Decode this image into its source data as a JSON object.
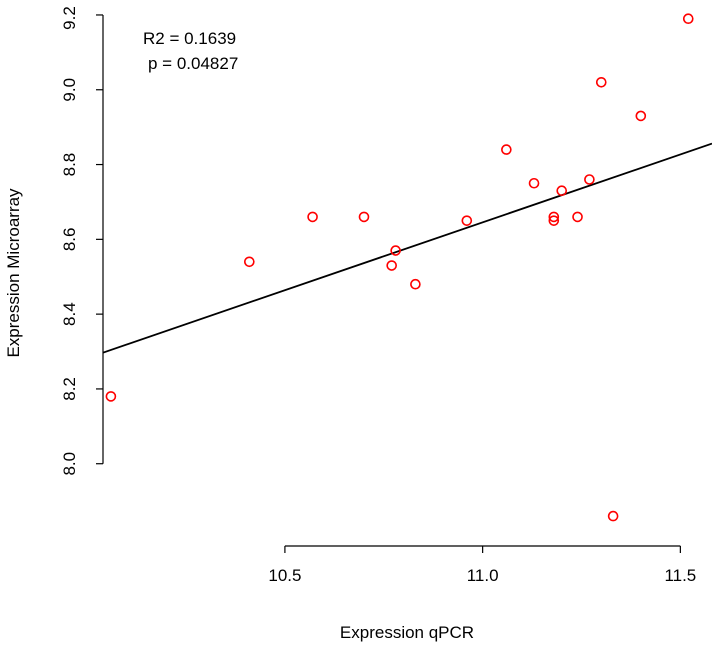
{
  "chart_data": {
    "type": "scatter",
    "xlabel": "Expression qPCR",
    "ylabel": "Expression Microarray",
    "xlim": [
      10.04,
      11.58
    ],
    "ylim": [
      7.78,
      9.24
    ],
    "x_ticks": [
      "10.5",
      "11.0",
      "11.5"
    ],
    "y_ticks": [
      "8.0",
      "8.2",
      "8.4",
      "8.6",
      "8.8",
      "9.0",
      "9.2"
    ],
    "point_color": "#ff0000",
    "annotations": [
      "R2 = 0.1639",
      "p = 0.04827"
    ],
    "points": [
      {
        "x": 10.06,
        "y": 8.18
      },
      {
        "x": 10.41,
        "y": 8.54
      },
      {
        "x": 10.57,
        "y": 8.66
      },
      {
        "x": 10.7,
        "y": 8.66
      },
      {
        "x": 10.77,
        "y": 8.53
      },
      {
        "x": 10.78,
        "y": 8.57
      },
      {
        "x": 10.83,
        "y": 8.48
      },
      {
        "x": 10.96,
        "y": 8.65
      },
      {
        "x": 11.06,
        "y": 8.84
      },
      {
        "x": 11.13,
        "y": 8.75
      },
      {
        "x": 11.18,
        "y": 8.65
      },
      {
        "x": 11.18,
        "y": 8.66
      },
      {
        "x": 11.2,
        "y": 8.73
      },
      {
        "x": 11.24,
        "y": 8.66
      },
      {
        "x": 11.27,
        "y": 8.76
      },
      {
        "x": 11.3,
        "y": 9.02
      },
      {
        "x": 11.33,
        "y": 7.86
      },
      {
        "x": 11.4,
        "y": 8.93
      },
      {
        "x": 11.52,
        "y": 9.19
      }
    ],
    "fit_line": {
      "x": [
        10.04,
        11.58
      ],
      "y": [
        8.297,
        8.856
      ]
    }
  }
}
